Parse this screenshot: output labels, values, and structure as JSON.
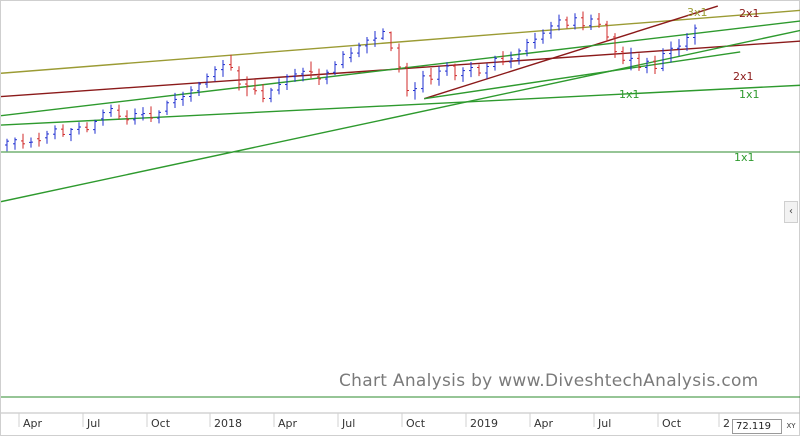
{
  "chart_data": {
    "type": "bar",
    "x_ticks": [
      "Apr",
      "Jul",
      "Oct",
      "2018",
      "Apr",
      "Jul",
      "Oct",
      "2019",
      "Apr",
      "Jul",
      "Oct",
      "2"
    ],
    "ylim": [
      0,
      100
    ],
    "grid": false,
    "trendlines": [
      {
        "label": "3x1",
        "color": "#9b9b34",
        "x0": 0,
        "y0": 69.9,
        "x1": 100,
        "y1": 96.1
      },
      {
        "label": "2x1",
        "color": "#8b1a1a",
        "x0": 0,
        "y0": 60.2,
        "x1": 100,
        "y1": 83.3
      },
      {
        "label": "2x1",
        "color": "#8b1a1a",
        "x0": 52.9,
        "y0": 59.3,
        "x1": 89.6,
        "y1": 97.9
      },
      {
        "label": "1x1",
        "color": "#2e9a2e",
        "x0": 0,
        "y0": 52.2,
        "x1": 100,
        "y1": 91.7
      },
      {
        "label": "1x1",
        "color": "#2e9a2e",
        "x0": 0,
        "y0": 16.4,
        "x1": 100,
        "y1": 87.8
      },
      {
        "label": "1x1",
        "color": "#2e9a2e",
        "x0": 52.9,
        "y0": 59.3,
        "x1": 92.4,
        "y1": 78.8
      },
      {
        "label": "1x1",
        "color": "#2e9a2e",
        "x0": 0,
        "y0": 48.3,
        "x1": 100,
        "y1": 64.9
      }
    ],
    "labels": [
      "3x1",
      "2x1",
      "2x1",
      "1x1",
      "1x1",
      "1x1"
    ],
    "horizontal_lines": [
      37.1
    ],
    "last_price": "72.119",
    "up_color": "#1f2fd0",
    "down_color": "#d02a2a",
    "bars": [
      [
        1.0,
        40.0,
        42.6,
        37.4,
        41.6,
        "u"
      ],
      [
        2.0,
        40.5,
        43.1,
        38.0,
        42.2,
        "u"
      ],
      [
        3.0,
        41.7,
        44.7,
        38.5,
        40.5,
        "d"
      ],
      [
        4.0,
        41.1,
        43.1,
        38.9,
        41.2,
        "u"
      ],
      [
        5.0,
        42.6,
        45.1,
        39.3,
        41.8,
        "d"
      ],
      [
        6.0,
        43.0,
        45.9,
        40.5,
        44.6,
        "u"
      ],
      [
        7.0,
        44.5,
        48.2,
        42.4,
        46.7,
        "u"
      ],
      [
        8.0,
        46.6,
        48.6,
        43.4,
        44.4,
        "d"
      ],
      [
        9.0,
        44.4,
        47.1,
        41.6,
        46.5,
        "u"
      ],
      [
        10.0,
        46.5,
        49.5,
        44.4,
        47.5,
        "u"
      ],
      [
        11.0,
        47.4,
        49.5,
        45.3,
        46.4,
        "d"
      ],
      [
        12.0,
        46.4,
        50.5,
        44.7,
        49.8,
        "u"
      ],
      [
        13.0,
        50.9,
        54.8,
        48.0,
        53.5,
        "u"
      ],
      [
        14.0,
        53.5,
        56.8,
        51.7,
        55.2,
        "u"
      ],
      [
        15.0,
        54.5,
        56.8,
        50.8,
        52.0,
        "d"
      ],
      [
        16.0,
        52.0,
        54.5,
        48.5,
        50.5,
        "d"
      ],
      [
        17.0,
        50.5,
        55.2,
        48.5,
        53.1,
        "u"
      ],
      [
        18.0,
        52.6,
        55.8,
        50.2,
        53.1,
        "u"
      ],
      [
        19.0,
        53.1,
        56.1,
        49.6,
        51.2,
        "d"
      ],
      [
        20.0,
        51.2,
        54.5,
        49.0,
        53.6,
        "u"
      ],
      [
        21.0,
        54.1,
        58.5,
        52.5,
        57.6,
        "u"
      ],
      [
        22.0,
        57.6,
        61.7,
        55.4,
        59.0,
        "u"
      ],
      [
        23.0,
        59.0,
        62.2,
        56.3,
        60.2,
        "u"
      ],
      [
        24.0,
        60.2,
        64.5,
        58.0,
        62.9,
        "u"
      ],
      [
        25.0,
        62.6,
        66.3,
        60.4,
        65.4,
        "u"
      ],
      [
        26.0,
        65.4,
        69.8,
        63.8,
        68.5,
        "u"
      ],
      [
        27.0,
        68.5,
        72.8,
        66.5,
        71.4,
        "u"
      ],
      [
        28.0,
        71.4,
        75.4,
        68.4,
        73.5,
        "u"
      ],
      [
        29.0,
        73.5,
        77.6,
        71.0,
        72.3,
        "d"
      ],
      [
        30.0,
        70.9,
        72.8,
        62.7,
        65.4,
        "d"
      ],
      [
        31.0,
        65.4,
        68.6,
        60.3,
        64.6,
        "d"
      ],
      [
        32.0,
        63.3,
        67.5,
        61.0,
        62.6,
        "d"
      ],
      [
        33.0,
        62.6,
        65.4,
        57.8,
        59.4,
        "d"
      ],
      [
        34.0,
        59.4,
        63.8,
        57.8,
        62.9,
        "u"
      ],
      [
        35.0,
        62.9,
        67.8,
        61.1,
        65.2,
        "u"
      ],
      [
        36.0,
        65.2,
        69.5,
        62.9,
        68.5,
        "u"
      ],
      [
        37.0,
        68.5,
        71.7,
        66.3,
        69.6,
        "u"
      ],
      [
        38.0,
        69.6,
        72.2,
        66.5,
        70.7,
        "u"
      ],
      [
        39.0,
        70.7,
        74.8,
        67.8,
        70.4,
        "d"
      ],
      [
        40.0,
        68.4,
        71.8,
        65.0,
        67.5,
        "d"
      ],
      [
        41.0,
        67.5,
        71.4,
        65.3,
        70.3,
        "u"
      ],
      [
        42.0,
        70.3,
        74.9,
        69.1,
        73.5,
        "u"
      ],
      [
        43.0,
        73.5,
        79.1,
        72.0,
        77.8,
        "u"
      ],
      [
        44.0,
        76.4,
        80.6,
        74.5,
        78.3,
        "u"
      ],
      [
        45.0,
        78.3,
        82.6,
        76.6,
        81.3,
        "u"
      ],
      [
        46.0,
        81.3,
        85.0,
        78.2,
        83.7,
        "u"
      ],
      [
        47.0,
        83.7,
        87.5,
        80.9,
        84.5,
        "u"
      ],
      [
        48.0,
        84.5,
        88.6,
        83.8,
        87.3,
        "u"
      ],
      [
        49.0,
        86.8,
        87.3,
        79.1,
        80.4,
        "d"
      ],
      [
        50.0,
        80.4,
        82.3,
        70.2,
        72.5,
        "d"
      ],
      [
        51.0,
        72.5,
        74.2,
        60.2,
        62.7,
        "d"
      ],
      [
        52.0,
        62.7,
        66.2,
        58.9,
        63.5,
        "u"
      ],
      [
        53.0,
        63.5,
        70.9,
        61.9,
        68.8,
        "u"
      ],
      [
        54.0,
        68.8,
        72.1,
        65.2,
        67.4,
        "d"
      ],
      [
        55.0,
        67.4,
        72.8,
        64.7,
        70.8,
        "u"
      ],
      [
        56.0,
        70.8,
        74.5,
        68.8,
        72.9,
        "u"
      ],
      [
        57.0,
        72.9,
        73.9,
        67.0,
        68.9,
        "d"
      ],
      [
        58.0,
        68.9,
        72.4,
        66.3,
        71.0,
        "u"
      ],
      [
        59.0,
        71.0,
        74.6,
        68.3,
        72.3,
        "u"
      ],
      [
        60.0,
        72.3,
        73.6,
        68.7,
        70.0,
        "d"
      ],
      [
        61.0,
        70.0,
        74.0,
        67.6,
        72.7,
        "u"
      ],
      [
        62.0,
        72.7,
        77.2,
        71.0,
        76.1,
        "u"
      ],
      [
        63.0,
        76.1,
        79.1,
        73.3,
        74.6,
        "d"
      ],
      [
        64.0,
        74.6,
        78.9,
        72.0,
        75.9,
        "u"
      ],
      [
        65.0,
        75.9,
        80.2,
        73.5,
        79.2,
        "u"
      ],
      [
        66.0,
        79.2,
        84.2,
        77.0,
        82.7,
        "u"
      ],
      [
        67.0,
        82.7,
        86.7,
        80.1,
        84.1,
        "u"
      ],
      [
        68.0,
        84.1,
        88.2,
        82.2,
        86.6,
        "u"
      ],
      [
        69.0,
        86.6,
        91.3,
        84.3,
        89.6,
        "u"
      ],
      [
        70.0,
        89.6,
        94.3,
        87.7,
        92.1,
        "u"
      ],
      [
        71.0,
        92.1,
        93.5,
        88.6,
        89.9,
        "d"
      ],
      [
        72.0,
        89.9,
        94.9,
        88.1,
        93.0,
        "u"
      ],
      [
        73.0,
        93.0,
        95.6,
        87.8,
        89.7,
        "d"
      ],
      [
        74.0,
        89.7,
        94.3,
        87.9,
        92.5,
        "u"
      ],
      [
        75.0,
        92.5,
        95.0,
        88.8,
        90.3,
        "d"
      ],
      [
        76.0,
        90.3,
        91.7,
        83.2,
        85.0,
        "d"
      ],
      [
        77.0,
        85.0,
        86.6,
        76.3,
        78.9,
        "d"
      ],
      [
        78.0,
        78.9,
        81.0,
        73.7,
        75.3,
        "d"
      ],
      [
        79.0,
        75.3,
        80.5,
        71.1,
        76.1,
        "u"
      ],
      [
        80.0,
        76.1,
        78.2,
        70.9,
        72.3,
        "d"
      ],
      [
        81.0,
        72.3,
        76.3,
        69.9,
        74.9,
        "u"
      ],
      [
        82.0,
        74.9,
        77.2,
        69.6,
        71.9,
        "d"
      ],
      [
        83.0,
        71.9,
        80.3,
        70.8,
        78.1,
        "u"
      ],
      [
        84.0,
        78.1,
        83.1,
        74.4,
        80.3,
        "u"
      ],
      [
        85.0,
        80.3,
        84.1,
        77.1,
        81.2,
        "u"
      ],
      [
        86.0,
        81.2,
        86.6,
        79.2,
        84.8,
        "u"
      ],
      [
        87.0,
        84.8,
        90.2,
        81.8,
        88.7,
        "u"
      ]
    ]
  },
  "ui": {
    "watermark": "Chart Analysis by www.DiveshtechAnalysis.com",
    "price_readout": "72.119",
    "xy_label": "XY",
    "collapse_arrow": "‹"
  }
}
